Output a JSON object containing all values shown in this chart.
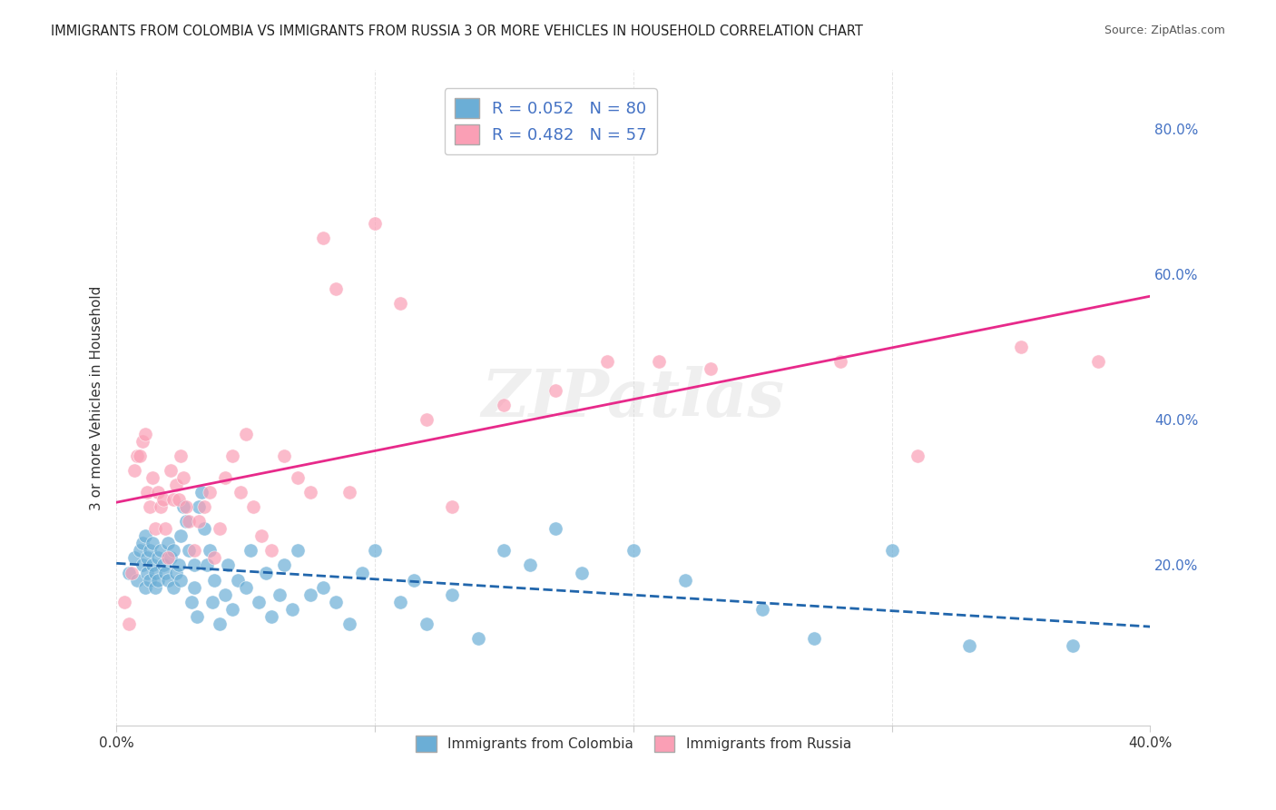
{
  "title": "IMMIGRANTS FROM COLOMBIA VS IMMIGRANTS FROM RUSSIA 3 OR MORE VEHICLES IN HOUSEHOLD CORRELATION CHART",
  "source": "Source: ZipAtlas.com",
  "xlabel": "",
  "ylabel": "3 or more Vehicles in Household",
  "xlim": [
    0.0,
    0.4
  ],
  "ylim": [
    -0.02,
    0.88
  ],
  "ytick_positions": [
    0.0,
    0.2,
    0.4,
    0.6,
    0.8
  ],
  "ytick_labels": [
    "",
    "20.0%",
    "40.0%",
    "60.0%",
    "80.0%"
  ],
  "R_colombia": 0.052,
  "N_colombia": 80,
  "R_russia": 0.482,
  "N_russia": 57,
  "color_colombia": "#6baed6",
  "color_russia": "#fa9fb5",
  "trendline_colombia": "#2166ac",
  "trendline_russia": "#e7298a",
  "background_color": "#ffffff",
  "grid_color": "#dddddd",
  "watermark": "ZIPatlas",
  "colombia_x": [
    0.005,
    0.007,
    0.008,
    0.009,
    0.01,
    0.01,
    0.011,
    0.011,
    0.012,
    0.012,
    0.013,
    0.013,
    0.014,
    0.014,
    0.015,
    0.015,
    0.016,
    0.016,
    0.017,
    0.018,
    0.019,
    0.02,
    0.02,
    0.021,
    0.022,
    0.022,
    0.023,
    0.024,
    0.025,
    0.025,
    0.026,
    0.027,
    0.028,
    0.029,
    0.03,
    0.03,
    0.031,
    0.032,
    0.033,
    0.034,
    0.035,
    0.036,
    0.037,
    0.038,
    0.04,
    0.042,
    0.043,
    0.045,
    0.047,
    0.05,
    0.052,
    0.055,
    0.058,
    0.06,
    0.063,
    0.065,
    0.068,
    0.07,
    0.075,
    0.08,
    0.085,
    0.09,
    0.095,
    0.1,
    0.11,
    0.115,
    0.12,
    0.13,
    0.14,
    0.15,
    0.16,
    0.17,
    0.18,
    0.2,
    0.22,
    0.25,
    0.27,
    0.3,
    0.33,
    0.37
  ],
  "colombia_y": [
    0.19,
    0.21,
    0.18,
    0.22,
    0.2,
    0.23,
    0.17,
    0.24,
    0.19,
    0.21,
    0.22,
    0.18,
    0.2,
    0.23,
    0.17,
    0.19,
    0.21,
    0.18,
    0.22,
    0.2,
    0.19,
    0.23,
    0.18,
    0.21,
    0.17,
    0.22,
    0.19,
    0.2,
    0.24,
    0.18,
    0.28,
    0.26,
    0.22,
    0.15,
    0.17,
    0.2,
    0.13,
    0.28,
    0.3,
    0.25,
    0.2,
    0.22,
    0.15,
    0.18,
    0.12,
    0.16,
    0.2,
    0.14,
    0.18,
    0.17,
    0.22,
    0.15,
    0.19,
    0.13,
    0.16,
    0.2,
    0.14,
    0.22,
    0.16,
    0.17,
    0.15,
    0.12,
    0.19,
    0.22,
    0.15,
    0.18,
    0.12,
    0.16,
    0.1,
    0.22,
    0.2,
    0.25,
    0.19,
    0.22,
    0.18,
    0.14,
    0.1,
    0.22,
    0.09,
    0.09
  ],
  "russia_x": [
    0.003,
    0.005,
    0.006,
    0.007,
    0.008,
    0.009,
    0.01,
    0.011,
    0.012,
    0.013,
    0.014,
    0.015,
    0.016,
    0.017,
    0.018,
    0.019,
    0.02,
    0.021,
    0.022,
    0.023,
    0.024,
    0.025,
    0.026,
    0.027,
    0.028,
    0.03,
    0.032,
    0.034,
    0.036,
    0.038,
    0.04,
    0.042,
    0.045,
    0.048,
    0.05,
    0.053,
    0.056,
    0.06,
    0.065,
    0.07,
    0.075,
    0.08,
    0.085,
    0.09,
    0.1,
    0.11,
    0.12,
    0.13,
    0.15,
    0.17,
    0.19,
    0.21,
    0.23,
    0.28,
    0.31,
    0.35,
    0.38
  ],
  "russia_y": [
    0.15,
    0.12,
    0.19,
    0.33,
    0.35,
    0.35,
    0.37,
    0.38,
    0.3,
    0.28,
    0.32,
    0.25,
    0.3,
    0.28,
    0.29,
    0.25,
    0.21,
    0.33,
    0.29,
    0.31,
    0.29,
    0.35,
    0.32,
    0.28,
    0.26,
    0.22,
    0.26,
    0.28,
    0.3,
    0.21,
    0.25,
    0.32,
    0.35,
    0.3,
    0.38,
    0.28,
    0.24,
    0.22,
    0.35,
    0.32,
    0.3,
    0.65,
    0.58,
    0.3,
    0.67,
    0.56,
    0.4,
    0.28,
    0.42,
    0.44,
    0.48,
    0.48,
    0.47,
    0.48,
    0.35,
    0.5,
    0.48
  ]
}
